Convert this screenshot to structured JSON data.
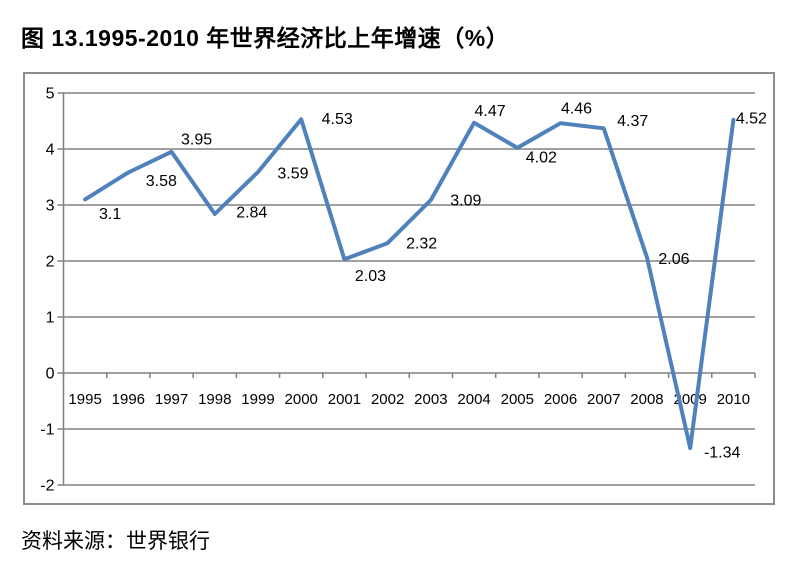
{
  "page": {
    "title": "图 13.1995-2010 年世界经济比上年增速（%）",
    "source": "资料来源：世界银行"
  },
  "chart_data": {
    "type": "line",
    "title": "图 13.1995-2010 年世界经济比上年增速（%）",
    "categories": [
      "1995",
      "1996",
      "1997",
      "1998",
      "1999",
      "2000",
      "2001",
      "2002",
      "2003",
      "2004",
      "2005",
      "2006",
      "2007",
      "2008",
      "2009",
      "2010"
    ],
    "values": [
      3.1,
      3.58,
      3.95,
      2.84,
      3.59,
      4.53,
      2.03,
      2.32,
      3.09,
      4.47,
      4.02,
      4.46,
      4.37,
      2.06,
      -1.34,
      4.52
    ],
    "data_labels": [
      "3.1",
      "3.58",
      "3.95",
      "2.84",
      "3.59",
      "4.53",
      "2.03",
      "2.32",
      "3.09",
      "4.47",
      "4.02",
      "4.46",
      "4.37",
      "2.06",
      "-1.34",
      "4.52"
    ],
    "ylim": [
      -2,
      5
    ],
    "yticks": [
      5,
      4,
      3,
      2,
      1,
      0,
      -1,
      -2
    ],
    "grid": true,
    "legend_position": "none",
    "source": "资料来源：世界银行",
    "colors": {
      "line": "#4F81BD",
      "grid": "#808080",
      "border": "#8C8C8C",
      "text": "#000000"
    }
  }
}
